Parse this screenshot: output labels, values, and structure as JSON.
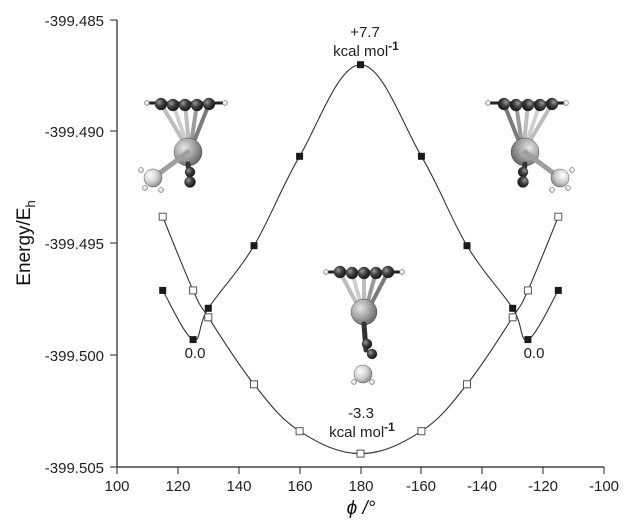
{
  "chart_data": {
    "type": "scatter",
    "title": "",
    "xlabel": "ϕ /°",
    "ylabel_main": "Energy/E",
    "ylabel_sub": "h",
    "x_tick_labels": [
      "100",
      "120",
      "140",
      "160",
      "180",
      "-160",
      "-140",
      "-120",
      "-100"
    ],
    "y_tick_labels": [
      "-399.485",
      "-399.490",
      "-399.495",
      "-399.500",
      "-399.505"
    ],
    "y_ticks": [
      -399.485,
      -399.49,
      -399.495,
      -399.5,
      -399.505
    ],
    "xlim": [
      "100",
      "-100"
    ],
    "ylim": [
      -399.505,
      -399.4845
    ],
    "grid": false,
    "series": [
      {
        "marker": "filled-square",
        "color": "#1a1a1a",
        "points": [
          {
            "phi": 115,
            "energy": -399.4971
          },
          {
            "phi": 125,
            "energy": -399.4993
          },
          {
            "phi": 130,
            "energy": -399.4979
          },
          {
            "phi": 145,
            "energy": -399.4951
          },
          {
            "phi": 160,
            "energy": -399.4911
          },
          {
            "phi": 180,
            "energy": -399.487
          },
          {
            "phi": -160,
            "energy": -399.4911
          },
          {
            "phi": -145,
            "energy": -399.4951
          },
          {
            "phi": -130,
            "energy": -399.4979
          },
          {
            "phi": -125,
            "energy": -399.4993
          },
          {
            "phi": -115,
            "energy": -399.4971
          }
        ]
      },
      {
        "marker": "open-square",
        "color": "#555555",
        "points": [
          {
            "phi": 115,
            "energy": -399.4938
          },
          {
            "phi": 125,
            "energy": -399.4971
          },
          {
            "phi": 130,
            "energy": -399.4983
          },
          {
            "phi": 145,
            "energy": -399.5013
          },
          {
            "phi": 160,
            "energy": -399.5034
          },
          {
            "phi": 180,
            "energy": -399.5044
          },
          {
            "phi": -160,
            "energy": -399.5034
          },
          {
            "phi": -145,
            "energy": -399.5013
          },
          {
            "phi": -130,
            "energy": -399.4983
          },
          {
            "phi": -125,
            "energy": -399.4971
          },
          {
            "phi": -115,
            "energy": -399.4938
          }
        ]
      }
    ],
    "annotations": {
      "max_value": "+7.7",
      "max_unit": "kcal mol",
      "max_exp": "-1",
      "min_value": "-3.3",
      "min_unit": "kcal mol",
      "min_exp": "-1",
      "zero_left": "0.0",
      "zero_right": "0.0"
    }
  },
  "molecule_images": [
    "left-conformer",
    "center-conformer",
    "right-conformer"
  ]
}
